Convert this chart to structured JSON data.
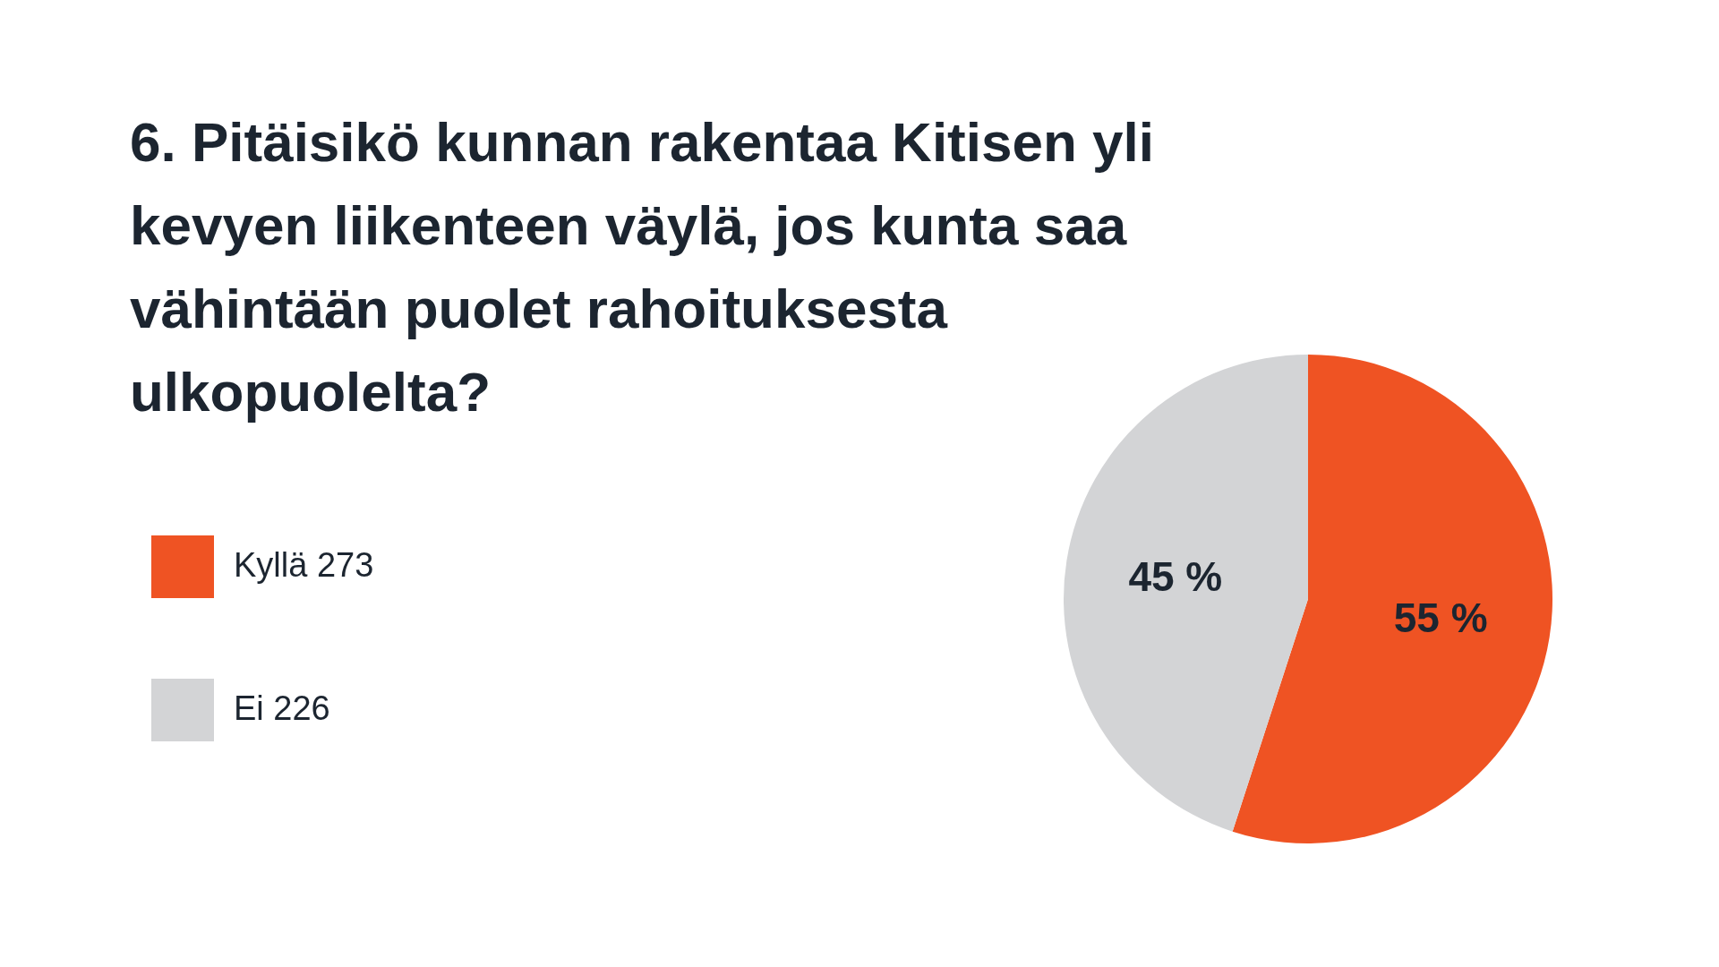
{
  "chart_data": {
    "type": "pie",
    "title": "6. Pitäisikö kunnan rakentaa Kitisen yli kevyen liikenteen väylä, jos kunta saa vähintään puolet rahoituksesta ulkopuolelta?",
    "categories": [
      "Kyllä 273",
      "Ei 226"
    ],
    "values": [
      55,
      45
    ],
    "value_labels": [
      "55 %",
      "45 %"
    ],
    "colors": [
      "#ef5323",
      "#d3d4d6"
    ],
    "legend": "left"
  }
}
